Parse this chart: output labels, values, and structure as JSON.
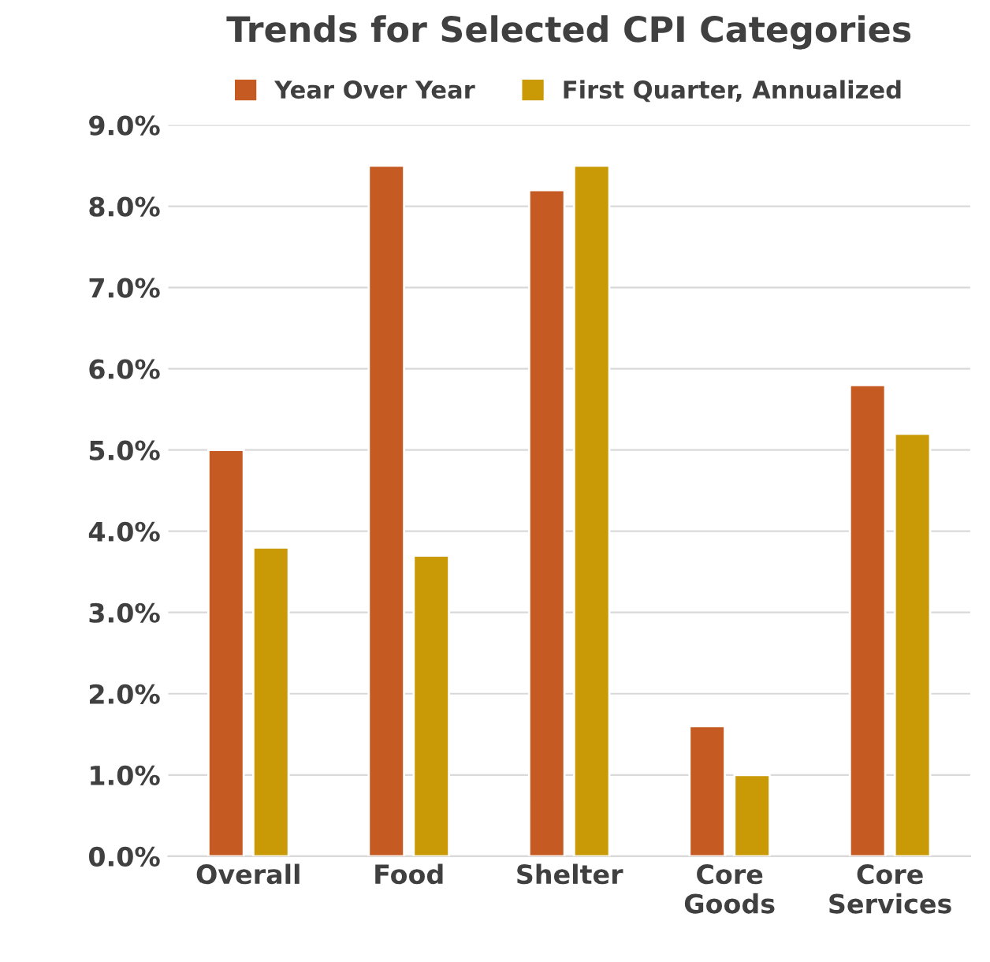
{
  "chart_data": {
    "type": "bar",
    "title": "Trends for Selected CPI Categories",
    "categories": [
      "Overall",
      "Food",
      "Shelter",
      "Core\nGoods",
      "Core\nServices"
    ],
    "series": [
      {
        "name": "Year Over Year",
        "color": "#c55a22",
        "values": [
          5.0,
          8.5,
          8.2,
          1.6,
          5.8
        ]
      },
      {
        "name": "First Quarter, Annualized",
        "color": "#c99a06",
        "values": [
          3.8,
          3.7,
          8.5,
          1.0,
          5.2
        ]
      }
    ],
    "ylim": [
      0,
      9
    ],
    "yticks": [
      {
        "value": 0,
        "label": "0.0%"
      },
      {
        "value": 1,
        "label": "1.0%"
      },
      {
        "value": 2,
        "label": "2.0%"
      },
      {
        "value": 3,
        "label": "3.0%"
      },
      {
        "value": 4,
        "label": "4.0%"
      },
      {
        "value": 5,
        "label": "5.0%"
      },
      {
        "value": 6,
        "label": "6.0%"
      },
      {
        "value": 7,
        "label": "7.0%"
      },
      {
        "value": 8,
        "label": "8.0%"
      },
      {
        "value": 9,
        "label": "9.0%"
      }
    ],
    "grid": "y",
    "legend": "top"
  }
}
